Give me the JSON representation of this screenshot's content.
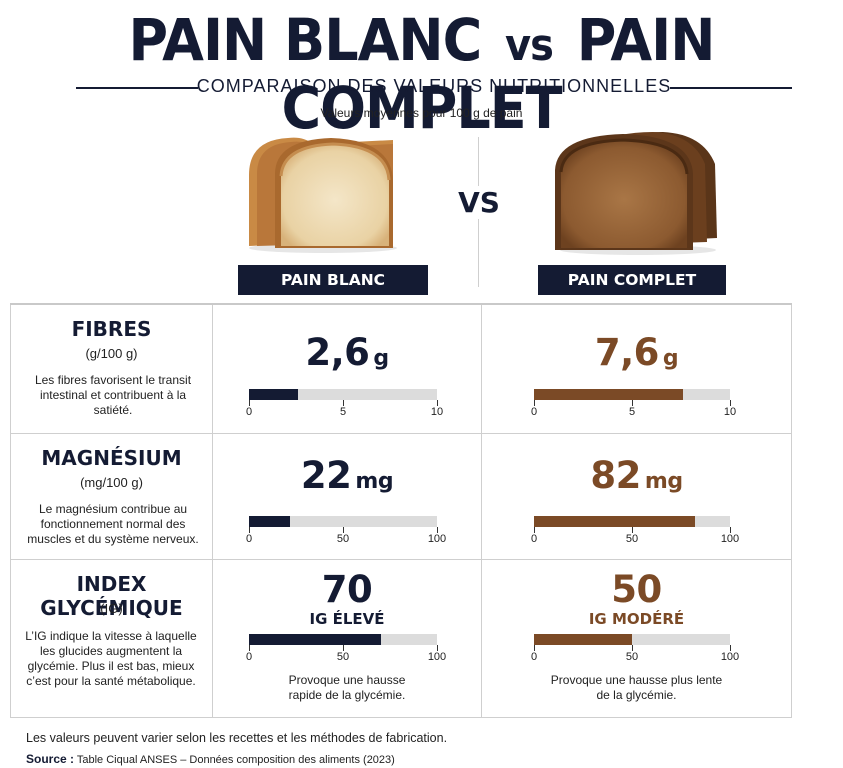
{
  "header": {
    "title_left": "PAIN BLANC",
    "title_vs": "vs",
    "title_right": "PAIN COMPLET",
    "subtitle": "COMPARAISON DES VALEURS NUTRITIONNELLES",
    "note": "Valeurs moyennes pour 100 g de pain"
  },
  "versus": {
    "label": "VS"
  },
  "products": {
    "white": {
      "name": "PAIN BLANC",
      "color": "#141b33"
    },
    "brown": {
      "name": "PAIN COMPLET",
      "color": "#7b4a26"
    }
  },
  "rows": [
    {
      "title": "FIBRES",
      "unit_label": "(g/100 g)",
      "desc": "Les fibres favorisent le transit intestinal et contribuent à la satiété.",
      "white": {
        "value": "2,6",
        "unit": "g",
        "fraction": 0.26
      },
      "brown": {
        "value": "7,6",
        "unit": "g",
        "fraction": 0.76
      },
      "scale": [
        "0",
        "5",
        "10"
      ]
    },
    {
      "title": "MAGNÉSIUM",
      "unit_label": "(mg/100 g)",
      "desc": "Le magnésium contribue au fonctionnement normal des muscles et du système nerveux.",
      "white": {
        "value": "22",
        "unit": "mg",
        "fraction": 0.22
      },
      "brown": {
        "value": "82",
        "unit": "mg",
        "fraction": 0.82
      },
      "scale": [
        "0",
        "50",
        "100"
      ]
    },
    {
      "title": "INDEX GLYCÉMIQUE",
      "unit_label": "(IG)",
      "desc": "L’IG indique la vitesse à laquelle les glucides augmentent la glycémie. Plus il est bas, mieux c’est pour la santé métabolique.",
      "white": {
        "value": "70",
        "tag": "IG ÉLEVÉ",
        "fraction": 0.7,
        "effect": "Provoque une hausse rapide de la glycémie."
      },
      "brown": {
        "value": "50",
        "tag": "IG MODÉRÉ",
        "fraction": 0.5,
        "effect": "Provoque une hausse plus lente de la glycémie."
      },
      "scale": [
        "0",
        "50",
        "100"
      ]
    }
  ],
  "footer": {
    "disclaimer": "Les valeurs peuvent varier selon les recettes et les méthodes de fabrication.",
    "source_label": "Source :",
    "source_text": "Table Ciqual ANSES – Données composition des aliments (2023)"
  }
}
